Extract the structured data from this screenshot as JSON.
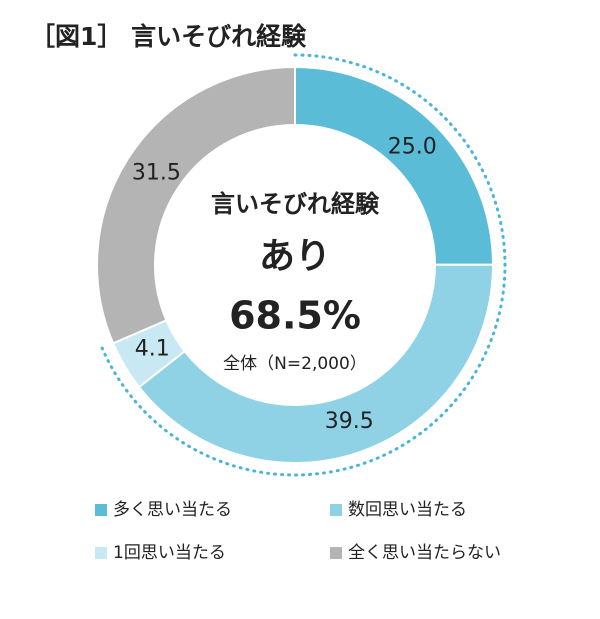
{
  "chart_data": {
    "type": "donut",
    "title": "［図1］ 言いそびれ経験",
    "center_label": [
      "言いそびれ経験",
      "あり",
      "68.5%",
      "全体（N=2,000）"
    ],
    "categories": [
      "多く思い当たる",
      "数回思い当たる",
      "1回思い当たる",
      "全く思い当たらない"
    ],
    "values": [
      25.0,
      39.5,
      4.1,
      31.5
    ],
    "value_labels": [
      "25.0",
      "39.5",
      "4.1",
      "31.5"
    ],
    "colors": [
      "#5bbcd8",
      "#8fd2e6",
      "#c8e9f3",
      "#b4b4b4"
    ]
  }
}
